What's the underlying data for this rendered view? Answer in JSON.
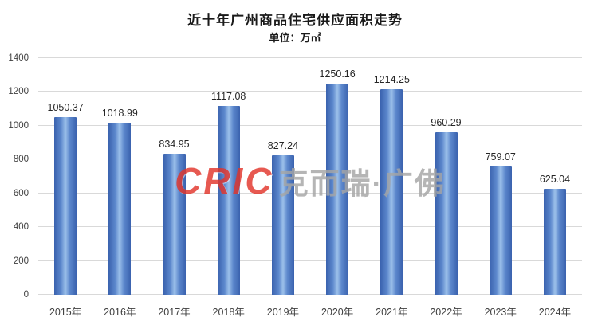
{
  "subtitle": "单位：万㎡",
  "watermark": {
    "logo": "CRIC",
    "text": "克而瑞·广佛",
    "logo_color": "#e2352b",
    "text_color": "#a6a6a6"
  },
  "chart_data": {
    "type": "bar",
    "title": "近十年广州商品住宅供应面积走势",
    "subtitle": "单位：万㎡",
    "categories": [
      "2015年",
      "2016年",
      "2017年",
      "2018年",
      "2019年",
      "2020年",
      "2021年",
      "2022年",
      "2023年",
      "2024年"
    ],
    "values": [
      1050.37,
      1018.99,
      834.95,
      1117.08,
      827.24,
      1250.16,
      1214.25,
      960.29,
      759.07,
      625.04
    ],
    "xlabel": "",
    "ylabel": "",
    "ylim": [
      0,
      1400
    ],
    "ytick_step": 200,
    "grid": true,
    "legend": "none",
    "bar_color_dark": "#3a62ae",
    "bar_color_mid": "#5b87cc",
    "bar_color_light": "#9cc0ea",
    "gridline_color": "#d9d9d9"
  }
}
